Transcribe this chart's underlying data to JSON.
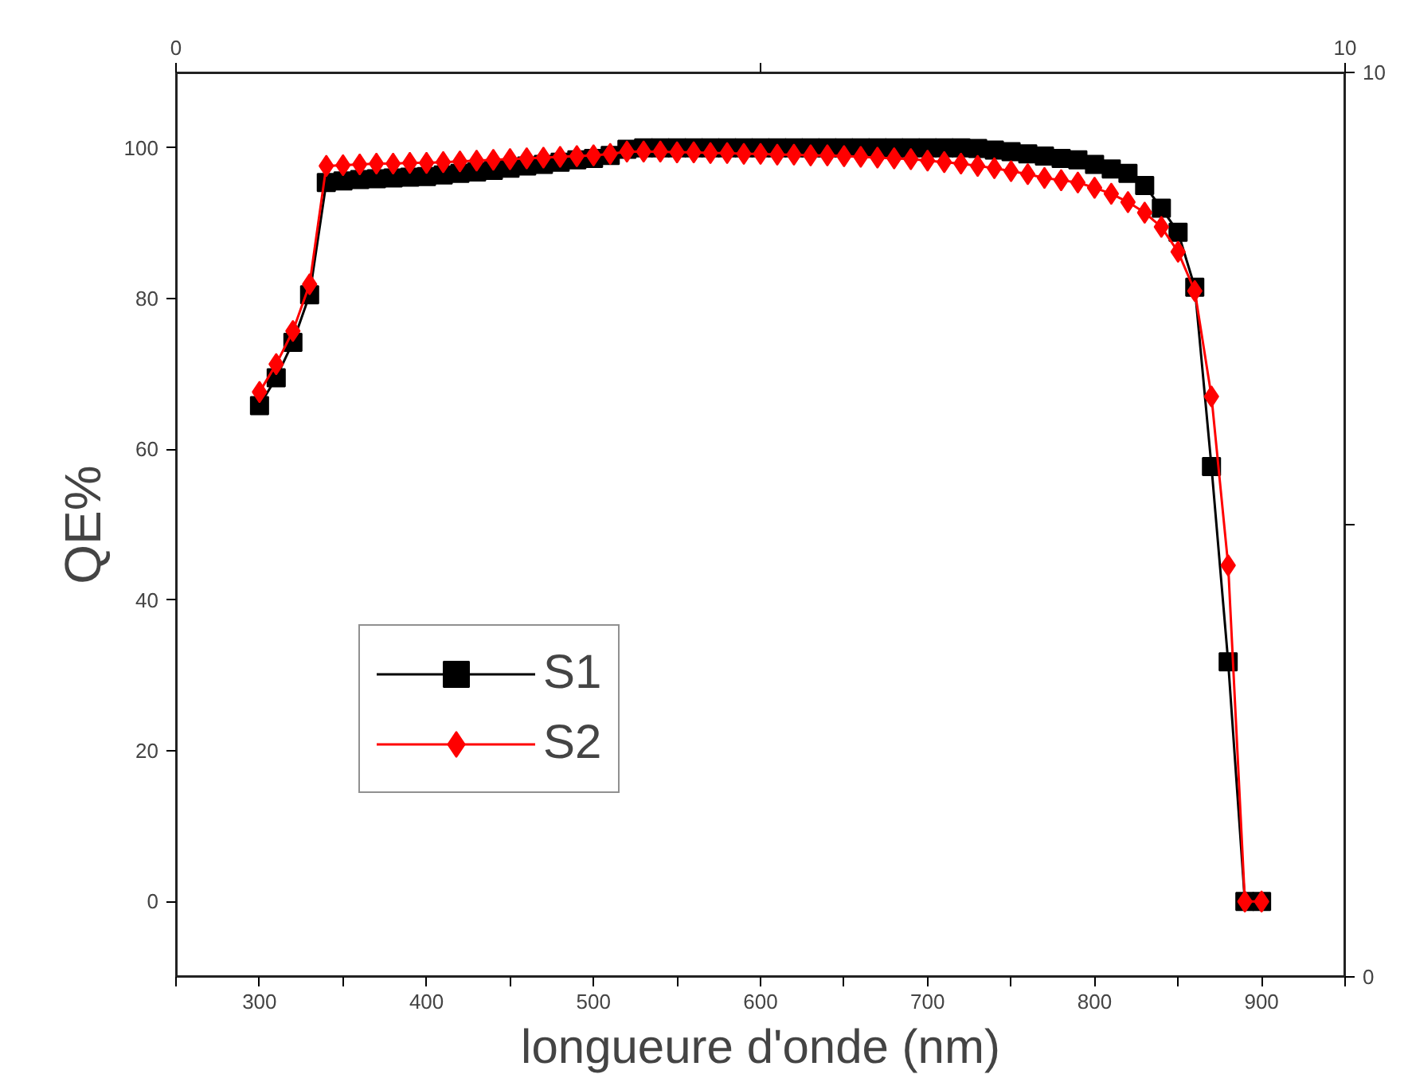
{
  "chart_data": {
    "type": "line",
    "xlabel": "longueure d'onde (nm)",
    "ylabel": "QE%",
    "x": [
      300,
      310,
      320,
      330,
      340,
      350,
      360,
      370,
      380,
      390,
      400,
      410,
      420,
      430,
      440,
      450,
      460,
      470,
      480,
      490,
      500,
      510,
      520,
      530,
      540,
      550,
      560,
      570,
      580,
      590,
      600,
      610,
      620,
      630,
      640,
      650,
      660,
      670,
      680,
      690,
      700,
      710,
      720,
      730,
      740,
      750,
      760,
      770,
      780,
      790,
      800,
      810,
      820,
      830,
      840,
      850,
      860,
      870,
      880,
      890,
      900
    ],
    "series": [
      {
        "name": "S1",
        "color": "#000000",
        "marker": "square",
        "values": [
          65.8,
          69.5,
          74.2,
          80.5,
          95.4,
          95.6,
          95.8,
          95.9,
          96.0,
          96.1,
          96.2,
          96.4,
          96.6,
          96.8,
          97.0,
          97.3,
          97.6,
          97.8,
          98.1,
          98.4,
          98.6,
          99.0,
          99.8,
          100,
          100,
          100,
          100,
          100,
          100,
          100,
          100,
          100,
          100,
          100,
          100,
          100,
          100,
          100,
          100,
          100,
          100,
          100,
          100,
          99.9,
          99.7,
          99.5,
          99.2,
          98.9,
          98.6,
          98.4,
          97.8,
          97.2,
          96.6,
          95.0,
          92.0,
          88.8,
          81.5,
          57.7,
          31.8,
          0,
          0
        ]
      },
      {
        "name": "S2",
        "color": "#ff0000",
        "marker": "diamond",
        "values": [
          67.6,
          71.3,
          75.7,
          81.9,
          97.6,
          97.7,
          97.8,
          97.9,
          97.9,
          98.0,
          98.0,
          98.1,
          98.2,
          98.3,
          98.4,
          98.5,
          98.6,
          98.7,
          98.8,
          98.9,
          99.0,
          99.2,
          99.5,
          99.5,
          99.5,
          99.4,
          99.4,
          99.3,
          99.3,
          99.2,
          99.2,
          99.1,
          99.1,
          99.0,
          99.0,
          98.9,
          98.8,
          98.7,
          98.6,
          98.5,
          98.3,
          98.1,
          97.9,
          97.6,
          97.3,
          96.9,
          96.5,
          96.0,
          95.7,
          95.4,
          94.7,
          93.9,
          92.8,
          91.4,
          89.5,
          86.2,
          81.0,
          67.0,
          44.6,
          0,
          0
        ]
      }
    ],
    "xlim": [
      250,
      950
    ],
    "xticks": [
      {
        "value": 250,
        "label": null
      },
      300,
      {
        "value": 350,
        "label": null
      },
      400,
      {
        "value": 450,
        "label": null
      },
      500,
      {
        "value": 550,
        "label": null
      },
      600,
      {
        "value": 650,
        "label": null
      },
      700,
      {
        "value": 750,
        "label": null
      },
      800,
      {
        "value": 850,
        "label": null
      },
      900,
      {
        "value": 950,
        "label": null
      }
    ],
    "ylim": [
      -10,
      110
    ],
    "yticks": [
      0,
      20,
      40,
      60,
      80,
      100
    ],
    "x2lim": [
      0,
      10
    ],
    "x2ticks": [
      0,
      {
        "value": 5,
        "label": null
      },
      10
    ],
    "y2lim": [
      0,
      10
    ],
    "y2ticks": [
      0,
      {
        "value": 5,
        "label": null
      },
      10
    ],
    "grid": false,
    "legend": "left",
    "line_style": "solid"
  }
}
